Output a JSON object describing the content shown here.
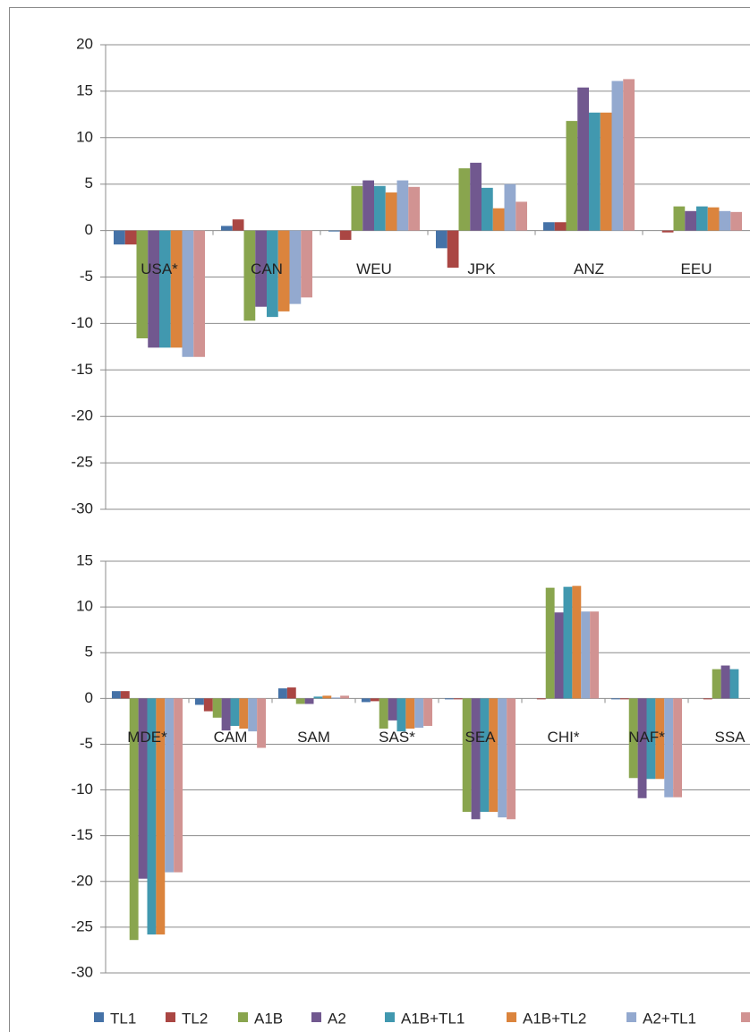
{
  "chart_data": [
    {
      "type": "bar",
      "categories": [
        "USA*",
        "CAN",
        "WEU",
        "JPK",
        "ANZ",
        "EEU"
      ],
      "series": [
        {
          "name": "TL1",
          "color": "#4572a7",
          "values": [
            -1.5,
            0.5,
            -0.1,
            -1.9,
            0.9,
            0.0
          ]
        },
        {
          "name": "TL2",
          "color": "#aa4643",
          "values": [
            -1.5,
            1.2,
            -1.0,
            -4.0,
            0.9,
            -0.2
          ]
        },
        {
          "name": "A1B",
          "color": "#89a54e",
          "values": [
            -11.6,
            -9.7,
            4.8,
            6.7,
            11.8,
            2.6
          ]
        },
        {
          "name": "A2",
          "color": "#71588f",
          "values": [
            -12.6,
            -8.2,
            5.4,
            7.3,
            15.4,
            2.1
          ]
        },
        {
          "name": "A1B+TL1",
          "color": "#4198af",
          "values": [
            -12.6,
            -9.3,
            4.8,
            4.6,
            12.7,
            2.6
          ]
        },
        {
          "name": "A1B+TL2",
          "color": "#db843d",
          "values": [
            -12.6,
            -8.7,
            4.1,
            2.4,
            12.7,
            2.5
          ]
        },
        {
          "name": "A2+TL1",
          "color": "#93a9cf",
          "values": [
            -13.6,
            -7.9,
            5.4,
            5.0,
            16.1,
            2.1
          ]
        },
        {
          "name": null,
          "color": "#d19392",
          "values": [
            -13.6,
            -7.2,
            4.7,
            3.1,
            16.3,
            2.0
          ]
        }
      ],
      "ylim": [
        -30,
        20
      ],
      "yticks": [
        -30,
        -25,
        -20,
        -15,
        -10,
        -5,
        0,
        5,
        10,
        15,
        20
      ],
      "grid": true
    },
    {
      "type": "bar",
      "categories": [
        "MDE*",
        "CAM",
        "SAM",
        "SAS*",
        "SEA",
        "CHI*",
        "NAF*",
        "SSA"
      ],
      "series": [
        {
          "name": "TL1",
          "color": "#4572a7",
          "values": [
            0.8,
            -0.7,
            1.1,
            -0.4,
            -0.1,
            0.0,
            -0.1,
            0.0
          ]
        },
        {
          "name": "TL2",
          "color": "#aa4643",
          "values": [
            0.8,
            -1.4,
            1.2,
            -0.3,
            -0.1,
            -0.1,
            -0.1,
            -0.1
          ]
        },
        {
          "name": "A1B",
          "color": "#89a54e",
          "values": [
            -26.4,
            -2.1,
            -0.6,
            -3.3,
            -12.4,
            12.1,
            -8.7,
            3.2
          ]
        },
        {
          "name": "A2",
          "color": "#71588f",
          "values": [
            -19.7,
            -3.5,
            -0.6,
            -2.4,
            -13.2,
            9.4,
            -10.9,
            3.6
          ]
        },
        {
          "name": "A1B+TL1",
          "color": "#4198af",
          "values": [
            -25.8,
            -3.0,
            0.2,
            -3.6,
            -12.4,
            12.2,
            -8.8,
            3.2
          ]
        },
        {
          "name": "A1B+TL2",
          "color": "#db843d",
          "values": [
            -25.8,
            -3.3,
            0.3,
            -3.3,
            -12.4,
            12.3,
            -8.8,
            null
          ]
        },
        {
          "name": "A2+TL1",
          "color": "#93a9cf",
          "values": [
            -19.0,
            -3.6,
            0.1,
            -3.2,
            -13.0,
            9.5,
            -10.8,
            null
          ]
        },
        {
          "name": null,
          "color": "#d19392",
          "values": [
            -19.0,
            -5.4,
            0.3,
            -3.0,
            -13.2,
            9.5,
            -10.8,
            null
          ]
        }
      ],
      "ylim": [
        -30,
        15
      ],
      "yticks": [
        -30,
        -25,
        -20,
        -15,
        -10,
        -5,
        0,
        5,
        10,
        15
      ],
      "grid": true
    }
  ]
}
